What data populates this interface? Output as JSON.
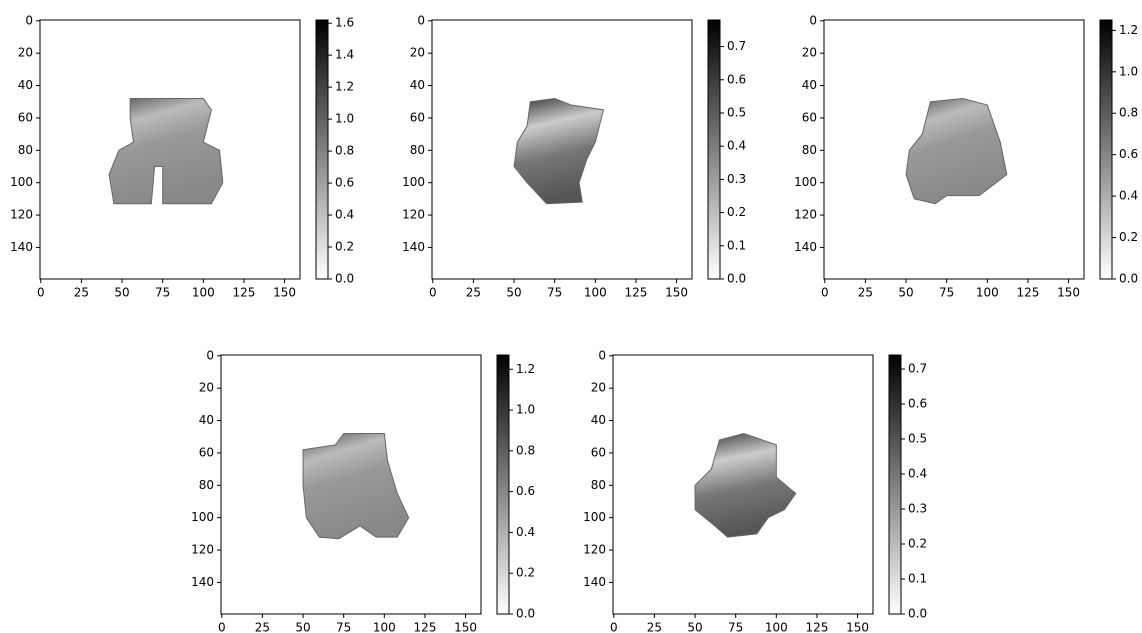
{
  "chart_data": [
    {
      "type": "image",
      "xlim": [
        -0.5,
        159.5
      ],
      "ylim": [
        159.5,
        -0.5
      ],
      "xticks": [
        0,
        25,
        50,
        75,
        100,
        125,
        150
      ],
      "yticks": [
        0,
        20,
        40,
        60,
        80,
        100,
        120,
        140
      ],
      "colormap": "gray_r",
      "clim": [
        0,
        1.62
      ],
      "cticks": [
        {
          "value": 0,
          "label": "0.0"
        },
        0.2,
        0.4,
        0.6,
        0.8,
        {
          "value": 1,
          "label": "1.0"
        },
        1.2,
        1.4,
        1.6
      ]
    },
    {
      "type": "image",
      "xlim": [
        -0.5,
        159.5
      ],
      "ylim": [
        159.5,
        -0.5
      ],
      "xticks": [
        0,
        25,
        50,
        75,
        100,
        125,
        150
      ],
      "yticks": [
        0,
        20,
        40,
        60,
        80,
        100,
        120,
        140
      ],
      "colormap": "gray_r",
      "clim": [
        0,
        0.78
      ],
      "cticks": [
        {
          "value": 0,
          "label": "0.0"
        },
        0.1,
        0.2,
        0.3,
        0.4,
        0.5,
        0.6,
        0.7
      ]
    },
    {
      "type": "image",
      "xlim": [
        -0.5,
        159.5
      ],
      "ylim": [
        159.5,
        -0.5
      ],
      "xticks": [
        0,
        25,
        50,
        75,
        100,
        125,
        150
      ],
      "yticks": [
        0,
        20,
        40,
        60,
        80,
        100,
        120,
        140
      ],
      "colormap": "gray_r",
      "clim": [
        0,
        1.25
      ],
      "cticks": [
        {
          "value": 0,
          "label": "0.0"
        },
        0.2,
        0.4,
        0.6,
        0.8,
        {
          "value": 1,
          "label": "1.0"
        },
        1.2
      ]
    },
    {
      "type": "image",
      "xlim": [
        -0.5,
        159.5
      ],
      "ylim": [
        159.5,
        -0.5
      ],
      "xticks": [
        0,
        25,
        50,
        75,
        100,
        125,
        150
      ],
      "yticks": [
        0,
        20,
        40,
        60,
        80,
        100,
        120,
        140
      ],
      "colormap": "gray_r",
      "clim": [
        0,
        1.27
      ],
      "cticks": [
        {
          "value": 0,
          "label": "0.0"
        },
        0.2,
        0.4,
        0.6,
        0.8,
        {
          "value": 1,
          "label": "1.0"
        },
        1.2
      ]
    },
    {
      "type": "image",
      "xlim": [
        -0.5,
        159.5
      ],
      "ylim": [
        159.5,
        -0.5
      ],
      "xticks": [
        0,
        25,
        50,
        75,
        100,
        125,
        150
      ],
      "yticks": [
        0,
        20,
        40,
        60,
        80,
        100,
        120,
        140
      ],
      "colormap": "gray_r",
      "clim": [
        0,
        0.74
      ],
      "cticks": [
        {
          "value": 0,
          "label": "0.0"
        },
        0.1,
        0.2,
        0.3,
        0.4,
        0.5,
        0.6,
        0.7
      ]
    }
  ]
}
